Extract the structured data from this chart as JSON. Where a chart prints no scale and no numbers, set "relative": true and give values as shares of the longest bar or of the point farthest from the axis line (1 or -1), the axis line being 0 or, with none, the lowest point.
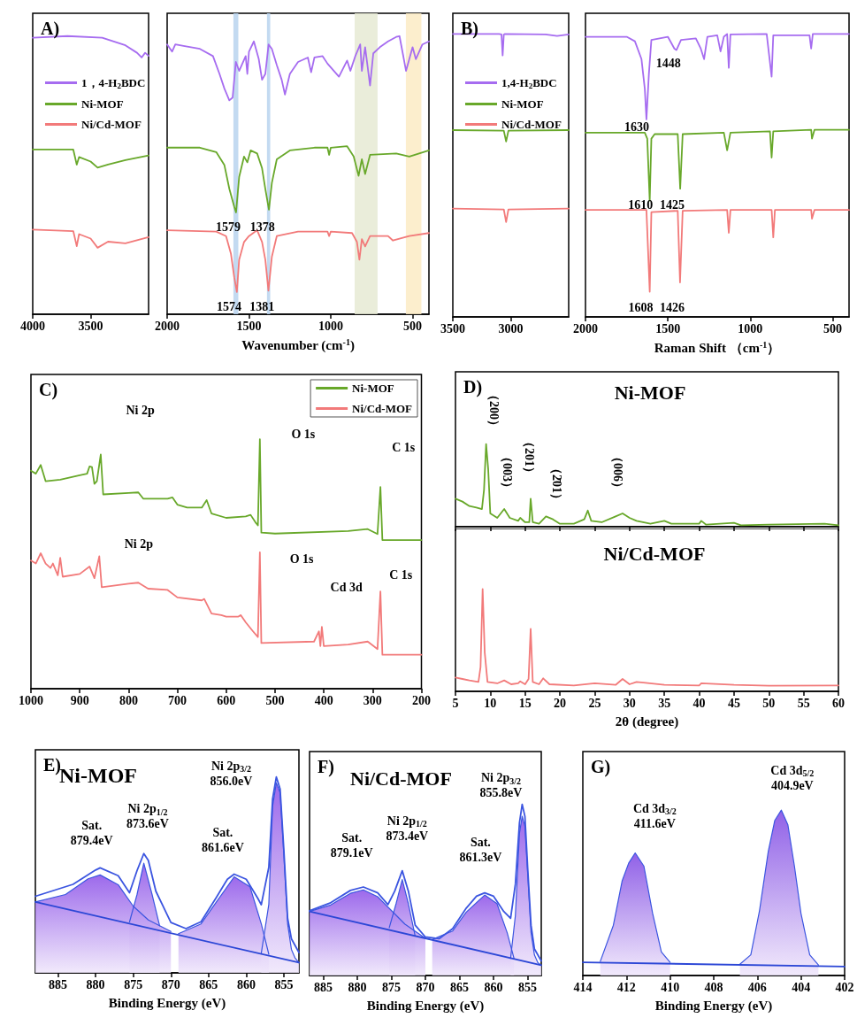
{
  "chart_data": [
    {
      "type": "line",
      "title": "A)",
      "relative": true,
      "xlim": [
        4000,
        3000
      ],
      "xticks": [
        4000,
        3500
      ],
      "legend": "left",
      "series": [
        {
          "name": "1，4-H$_{2}$BDC",
          "color": "#a66cf0",
          "x": [
            4000,
            3700,
            3400,
            3200,
            3100,
            3060,
            3030,
            3000
          ],
          "values": [
            0.994,
            1,
            0.994,
            0.967,
            0.94,
            0.923,
            0.94,
            0.929
          ]
        },
        {
          "name": "Ni-MOF",
          "color": "#68a82a",
          "x": [
            4000,
            3650,
            3620,
            3600,
            3500,
            3440,
            3350,
            3200,
            3000
          ],
          "values": [
            0.592,
            0.592,
            0.538,
            0.565,
            0.549,
            0.527,
            0.538,
            0.554,
            0.571
          ]
        },
        {
          "name": "Ni/Cd-MOF",
          "color": "#f27a7a",
          "x": [
            4000,
            3650,
            3620,
            3600,
            3500,
            3440,
            3350,
            3200,
            3050,
            3000
          ],
          "values": [
            0.304,
            0.299,
            0.245,
            0.288,
            0.272,
            0.239,
            0.261,
            0.255,
            0.272,
            0.277
          ]
        }
      ]
    },
    {
      "type": "line",
      "xlabel": "Wavenumber (cm$^{-1}$)",
      "relative": true,
      "xlim": [
        2000,
        400
      ],
      "xticks": [
        2000,
        1500,
        1000,
        500
      ],
      "bands": [
        {
          "axis": "x",
          "from": 1595,
          "to": 1565,
          "color": "#b9d4ee"
        },
        {
          "axis": "x",
          "from": 1390,
          "to": 1370,
          "color": "#b9d4ee"
        },
        {
          "axis": "x",
          "from": 854,
          "to": 714,
          "color": "#e6ead4"
        },
        {
          "axis": "x",
          "from": 541,
          "to": 446,
          "color": "#fbebc4"
        }
      ],
      "annotations": [
        "1579",
        "1378",
        "1574",
        "1381"
      ],
      "series": [
        {
          "color": "#a66cf0",
          "x": [
            2000,
            1970,
            1950,
            1900,
            1800,
            1720,
            1680,
            1650,
            1620,
            1600,
            1580,
            1560,
            1520,
            1510,
            1500,
            1470,
            1440,
            1420,
            1400,
            1380,
            1360,
            1330,
            1300,
            1280,
            1250,
            1200,
            1140,
            1120,
            1100,
            1050,
            1020,
            950,
            900,
            880,
            850,
            820,
            810,
            790,
            760,
            740,
            700,
            650,
            600,
            580,
            560,
            540,
            520,
            500,
            480,
            440,
            400
          ],
          "values": [
            0.97,
            0.944,
            0.97,
            0.965,
            0.954,
            0.928,
            0.864,
            0.811,
            0.769,
            0.779,
            0.907,
            0.875,
            0.928,
            0.864,
            0.944,
            0.981,
            0.917,
            0.843,
            0.864,
            0.97,
            0.954,
            0.896,
            0.843,
            0.79,
            0.864,
            0.907,
            0.923,
            0.87,
            0.923,
            0.928,
            0.901,
            0.854,
            0.912,
            0.875,
            0.928,
            0.97,
            0.875,
            0.96,
            0.822,
            0.938,
            0.96,
            0.981,
            0.997,
            1,
            0.938,
            0.875,
            0.917,
            0.96,
            0.917,
            0.97,
            0.981
          ]
        },
        {
          "color": "#68a82a",
          "x": [
            2000,
            1800,
            1700,
            1650,
            1620,
            1590,
            1579,
            1560,
            1530,
            1510,
            1490,
            1450,
            1420,
            1400,
            1378,
            1360,
            1330,
            1250,
            1100,
            1020,
            1010,
            1000,
            900,
            860,
            830,
            810,
            790,
            760,
            600,
            520,
            400
          ],
          "values": [
            0.599,
            0.599,
            0.583,
            0.536,
            0.451,
            0.387,
            0.366,
            0.493,
            0.567,
            0.546,
            0.589,
            0.578,
            0.525,
            0.451,
            0.376,
            0.472,
            0.557,
            0.589,
            0.599,
            0.599,
            0.573,
            0.599,
            0.604,
            0.567,
            0.498,
            0.557,
            0.504,
            0.573,
            0.578,
            0.567,
            0.589
          ]
        },
        {
          "color": "#f27a7a",
          "x": [
            2000,
            1700,
            1640,
            1610,
            1590,
            1574,
            1560,
            1530,
            1500,
            1450,
            1420,
            1400,
            1381,
            1360,
            1330,
            1200,
            1020,
            1010,
            1000,
            870,
            840,
            825,
            810,
            790,
            760,
            650,
            620,
            520,
            400
          ],
          "values": [
            0.302,
            0.297,
            0.281,
            0.217,
            0.133,
            0.08,
            0.196,
            0.26,
            0.281,
            0.302,
            0.26,
            0.196,
            0.085,
            0.207,
            0.281,
            0.297,
            0.297,
            0.281,
            0.297,
            0.292,
            0.26,
            0.196,
            0.27,
            0.244,
            0.281,
            0.281,
            0.265,
            0.281,
            0.292
          ]
        }
      ]
    },
    {
      "type": "line",
      "title": "B)",
      "relative": true,
      "xlim": [
        3500,
        2500
      ],
      "xticks": [
        3500,
        3000
      ],
      "legend": "left",
      "series": [
        {
          "name": "1,4-H$_{2}$BDC",
          "color": "#a66cf0",
          "x": [
            3500,
            3100,
            3080,
            3070,
            3060,
            3050,
            2700,
            2600,
            2500
          ],
          "values": [
            1,
            1,
            0.998,
            0.924,
            0.998,
            1,
            0.998,
            0.993,
            0.998
          ]
        },
        {
          "name": "Ni-MOF",
          "color": "#68a82a",
          "x": [
            3500,
            3060,
            3040,
            3020,
            2500
          ],
          "values": [
            0.66,
            0.658,
            0.62,
            0.658,
            0.66
          ]
        },
        {
          "name": "Ni/Cd-MOF",
          "color": "#f27a7a",
          "x": [
            3500,
            3060,
            3040,
            3020,
            2500
          ],
          "values": [
            0.383,
            0.38,
            0.335,
            0.38,
            0.383
          ]
        }
      ]
    },
    {
      "type": "line",
      "xlabel": "Raman Shift （cm$^{-1}$）",
      "relative": true,
      "xlim": [
        2000,
        400
      ],
      "xticks": [
        2000,
        1500,
        1000,
        500
      ],
      "annotations": [
        "1448",
        "1630",
        "1610",
        "1425",
        "1608",
        "1426"
      ],
      "series": [
        {
          "color": "#a66cf0",
          "x": [
            2000,
            1750,
            1700,
            1660,
            1640,
            1630,
            1615,
            1600,
            1500,
            1460,
            1448,
            1420,
            1330,
            1300,
            1280,
            1260,
            1200,
            1180,
            1160,
            1140,
            1130,
            1120,
            900,
            870,
            860,
            700,
            640,
            630,
            620,
            400
          ],
          "values": [
            0.99,
            0.99,
            0.974,
            0.911,
            0.807,
            0.698,
            0.859,
            0.979,
            0.99,
            0.948,
            0.943,
            0.979,
            0.984,
            0.948,
            0.911,
            0.99,
            0.995,
            0.938,
            0.99,
            1,
            0.88,
            0.998,
            1,
            0.849,
            0.995,
            0.995,
            0.995,
            0.948,
            1,
            1
          ]
        },
        {
          "color": "#68a82a",
          "x": [
            2000,
            1640,
            1625,
            1610,
            1600,
            1580,
            1550,
            1440,
            1425,
            1410,
            1160,
            1140,
            1120,
            880,
            870,
            860,
            630,
            625,
            610,
            400
          ],
          "values": [
            0.651,
            0.651,
            0.63,
            0.411,
            0.63,
            0.646,
            0.646,
            0.646,
            0.453,
            0.646,
            0.651,
            0.589,
            0.651,
            0.656,
            0.563,
            0.656,
            0.661,
            0.63,
            0.661,
            0.661
          ]
        },
        {
          "color": "#f27a7a",
          "x": [
            2000,
            1630,
            1610,
            1600,
            1440,
            1426,
            1410,
            1140,
            1130,
            1120,
            870,
            860,
            850,
            630,
            625,
            610,
            400
          ],
          "values": [
            0.378,
            0.378,
            0.089,
            0.37,
            0.375,
            0.122,
            0.375,
            0.378,
            0.297,
            0.378,
            0.378,
            0.281,
            0.378,
            0.378,
            0.347,
            0.378,
            0.378
          ]
        }
      ]
    },
    {
      "type": "line",
      "title": "C)",
      "relative": true,
      "xlim": [
        1000,
        200
      ],
      "xticks": [
        1000,
        900,
        800,
        700,
        600,
        500,
        400,
        300,
        200
      ],
      "legend": "top right",
      "annotations": [
        "Ni 2p",
        "O 1s",
        "C 1s",
        "Ni 2p",
        "O 1s",
        "Cd 3d",
        "C 1s"
      ],
      "series": [
        {
          "name": "Ni-MOF",
          "color": "#68a82a",
          "x": [
            1000,
            990,
            980,
            970,
            940,
            900,
            885,
            880,
            875,
            870,
            865,
            857,
            852,
            800,
            780,
            770,
            720,
            710,
            700,
            680,
            650,
            640,
            630,
            600,
            560,
            550,
            540,
            535,
            531,
            528,
            500,
            350,
            310,
            290,
            284,
            280,
            250,
            200
          ],
          "values": [
            0.874,
            0.862,
            0.897,
            0.832,
            0.838,
            0.856,
            0.862,
            0.891,
            0.889,
            0.821,
            0.832,
            0.939,
            0.779,
            0.785,
            0.787,
            0.762,
            0.762,
            0.767,
            0.738,
            0.726,
            0.726,
            0.756,
            0.702,
            0.685,
            0.691,
            0.697,
            0.667,
            0.655,
            1,
            0.626,
            0.622,
            0.632,
            0.64,
            0.62,
            0.809,
            0.596,
            0.596,
            0.596
          ]
        },
        {
          "name": "Ni/Cd-MOF",
          "color": "#f27a7a",
          "x": [
            1000,
            990,
            980,
            970,
            960,
            955,
            945,
            940,
            935,
            900,
            880,
            870,
            860,
            855,
            800,
            780,
            760,
            720,
            700,
            650,
            645,
            630,
            610,
            600,
            575,
            570,
            560,
            545,
            535,
            531,
            528,
            420,
            410,
            407,
            404,
            400,
            350,
            310,
            290,
            284,
            280,
            200
          ],
          "values": [
            0.514,
            0.502,
            0.543,
            0.502,
            0.484,
            0.502,
            0.455,
            0.525,
            0.449,
            0.46,
            0.49,
            0.443,
            0.531,
            0.407,
            0.421,
            0.425,
            0.401,
            0.396,
            0.366,
            0.354,
            0.36,
            0.301,
            0.295,
            0.289,
            0.289,
            0.295,
            0.266,
            0.23,
            0.207,
            0.547,
            0.183,
            0.189,
            0.23,
            0.171,
            0.248,
            0.171,
            0.177,
            0.189,
            0.159,
            0.39,
            0.136,
            0.136
          ]
        }
      ]
    },
    {
      "type": "line",
      "title": "D)",
      "subtitle": "Ni-MOF",
      "relative": true,
      "xlim": [
        5,
        60
      ],
      "xticks": [
        5,
        10,
        15,
        20,
        25,
        30,
        35,
        40,
        45,
        50,
        55,
        60
      ],
      "tick_labels": false,
      "annotations": [
        "（200）",
        "（003）",
        "（201）",
        "（2̄01）",
        "（006）"
      ],
      "series": [
        {
          "color": "#68a82a",
          "x": [
            5,
            6,
            7,
            8,
            8.8,
            9.1,
            9.4,
            9.7,
            10,
            11,
            12,
            12.8,
            14,
            14.3,
            15,
            15.6,
            15.8,
            16.1,
            17,
            18,
            19,
            20,
            22,
            23.5,
            24,
            24.5,
            26,
            28,
            29,
            30,
            31,
            33,
            35,
            36,
            40,
            40.3,
            41,
            45,
            46,
            50,
            58,
            60
          ],
          "values": [
            0.339,
            0.304,
            0.25,
            0.232,
            0.214,
            0.446,
            1,
            0.696,
            0.161,
            0.107,
            0.214,
            0.107,
            0.071,
            0.107,
            0.054,
            0.054,
            0.339,
            0.054,
            0.036,
            0.125,
            0.089,
            0.036,
            0.036,
            0.089,
            0.196,
            0.071,
            0.054,
            0.125,
            0.161,
            0.107,
            0.071,
            0.036,
            0.071,
            0.036,
            0.036,
            0.071,
            0.025,
            0.046,
            0.018,
            0.025,
            0.036,
            0.018
          ]
        }
      ]
    },
    {
      "type": "line",
      "subtitle": "Ni/Cd-MOF",
      "xlabel": "2θ (degree)",
      "relative": true,
      "xlim": [
        5,
        60
      ],
      "xticks": [
        5,
        10,
        15,
        20,
        25,
        30,
        35,
        40,
        45,
        50,
        55,
        60
      ],
      "series": [
        {
          "color": "#f27a7a",
          "x": [
            5,
            6,
            7,
            8.3,
            8.6,
            8.9,
            9.2,
            9.6,
            11,
            12,
            13,
            14,
            14.3,
            15,
            15.5,
            15.8,
            16.1,
            17,
            17.6,
            18.5,
            22,
            25,
            28,
            29,
            30,
            31,
            32,
            35,
            40,
            40.3,
            45,
            50,
            60
          ],
          "values": [
            0.135,
            0.121,
            0.107,
            0.092,
            0.236,
            1,
            0.38,
            0.092,
            0.078,
            0.107,
            0.069,
            0.078,
            0.098,
            0.069,
            0.121,
            0.611,
            0.092,
            0.069,
            0.127,
            0.069,
            0.058,
            0.078,
            0.063,
            0.121,
            0.069,
            0.092,
            0.086,
            0.063,
            0.058,
            0.078,
            0.063,
            0.055,
            0.058
          ]
        }
      ]
    },
    {
      "type": "line",
      "title": "E)",
      "subtitle": "Ni-MOF",
      "xlabel": "Binding Energy (eV)",
      "relative": true,
      "xlim": [
        888,
        853
      ],
      "xticks": [
        885,
        880,
        875,
        870,
        865,
        860,
        855
      ],
      "annotations": [
        "Sat.\n879.4eV",
        "Ni 2p$_{1/2}$\n873.6eV",
        "Sat.\n861.6eV",
        "Ni 2p$_{3/2}$\n856.0eV"
      ],
      "series": [
        {
          "type": "area",
          "color": "#8b4fe8",
          "x": [
            888,
            884,
            881,
            879.4,
            877,
            875,
            873,
            870
          ],
          "values": [
            0.362,
            0.4,
            0.48,
            0.5,
            0.45,
            0.34,
            0.27,
            0.211
          ]
        },
        {
          "type": "area",
          "color": "#8b4fe8",
          "x": [
            875.5,
            874.5,
            873.6,
            872.5,
            871.5
          ],
          "values": [
            0.26,
            0.4,
            0.56,
            0.4,
            0.24
          ]
        },
        {
          "type": "area",
          "color": "#8b4fe8",
          "x": [
            869,
            866,
            864,
            861.6,
            859.5,
            858,
            857
          ],
          "values": [
            0.2,
            0.25,
            0.36,
            0.49,
            0.44,
            0.25,
            0.095
          ]
        },
        {
          "type": "area",
          "color": "#8b4fe8",
          "x": [
            858,
            857,
            856.5,
            856,
            855.5,
            855,
            854.5,
            854,
            853.5,
            853
          ],
          "values": [
            0.1,
            0.35,
            0.85,
            0.97,
            0.92,
            0.6,
            0.25,
            0.12,
            0.075,
            0.052
          ]
        },
        {
          "type": "line",
          "color": "#2c47d6",
          "x": [
            888,
            853
          ],
          "values": [
            0.362,
            0.052
          ]
        },
        {
          "type": "line",
          "color": "#3b55e0",
          "x": [
            888,
            883,
            880,
            879.4,
            877,
            875.5,
            874.5,
            873.6,
            873,
            872,
            870,
            868,
            866,
            864,
            862.5,
            861.6,
            860,
            858.5,
            858,
            857,
            856.5,
            856,
            855.5,
            855,
            854.5,
            854,
            853
          ],
          "values": [
            0.391,
            0.452,
            0.525,
            0.536,
            0.496,
            0.409,
            0.522,
            0.609,
            0.574,
            0.417,
            0.257,
            0.226,
            0.261,
            0.383,
            0.478,
            0.504,
            0.478,
            0.383,
            0.348,
            0.539,
            0.887,
            1,
            0.939,
            0.626,
            0.278,
            0.174,
            0.104
          ]
        }
      ]
    },
    {
      "type": "line",
      "title": "F)",
      "subtitle": "Ni/Cd-MOF",
      "xlabel": "Binding Energy (eV)",
      "relative": true,
      "xlim": [
        887,
        853
      ],
      "xticks": [
        885,
        880,
        875,
        870,
        865,
        860,
        855
      ],
      "annotations": [
        "Sat.\n879.1eV",
        "Ni 2p$_{1/2}$\n873.4eV",
        "Sat.\n861.3eV",
        "Ni 2p$_{3/2}$\n855.8eV"
      ],
      "series": [
        {
          "type": "area",
          "color": "#8b4fe8",
          "x": [
            887,
            884,
            881,
            879.1,
            877,
            875,
            873,
            870
          ],
          "values": [
            0.374,
            0.41,
            0.48,
            0.5,
            0.46,
            0.38,
            0.3,
            0.217
          ]
        },
        {
          "type": "area",
          "color": "#8b4fe8",
          "x": [
            875.3,
            874.3,
            873.4,
            872.5,
            871.5
          ],
          "values": [
            0.28,
            0.42,
            0.56,
            0.42,
            0.23
          ]
        },
        {
          "type": "area",
          "color": "#8b4fe8",
          "x": [
            869,
            866,
            864,
            861.3,
            859.5,
            858,
            857
          ],
          "values": [
            0.21,
            0.26,
            0.37,
            0.47,
            0.42,
            0.25,
            0.1
          ]
        },
        {
          "type": "area",
          "color": "#8b4fe8",
          "x": [
            857.5,
            856.8,
            856.2,
            855.8,
            855.4,
            855,
            854.5,
            854,
            853.5,
            853
          ],
          "values": [
            0.1,
            0.35,
            0.83,
            0.93,
            0.87,
            0.6,
            0.25,
            0.12,
            0.075,
            0.06
          ]
        },
        {
          "type": "line",
          "color": "#2c47d6",
          "x": [
            887,
            853
          ],
          "values": [
            0.374,
            0.06
          ]
        },
        {
          "type": "line",
          "color": "#3b55e0",
          "x": [
            887,
            884,
            881,
            879.1,
            877,
            875.5,
            874.5,
            873.4,
            872.5,
            871.5,
            870,
            868,
            866,
            864,
            862.5,
            861.3,
            860,
            858.5,
            857.5,
            856.8,
            856.2,
            855.8,
            855.4,
            855,
            854.5,
            854,
            853
          ],
          "values": [
            0.378,
            0.423,
            0.497,
            0.517,
            0.483,
            0.414,
            0.493,
            0.612,
            0.493,
            0.294,
            0.225,
            0.215,
            0.274,
            0.394,
            0.463,
            0.483,
            0.463,
            0.374,
            0.334,
            0.533,
            0.891,
            1,
            0.93,
            0.632,
            0.294,
            0.155,
            0.085
          ]
        }
      ]
    },
    {
      "type": "line",
      "title": "G)",
      "xlabel": "Binding Energy (eV)",
      "relative": true,
      "xlim": [
        414,
        402
      ],
      "xticks": [
        414,
        412,
        410,
        408,
        406,
        404,
        402
      ],
      "annotations": [
        "Cd 3d$_{3/2}$\n411.6eV",
        "Cd 3d$_{5/2}$\n404.9eV"
      ],
      "series": [
        {
          "type": "area",
          "color": "#7d45e3",
          "x": [
            413.2,
            412.6,
            412.2,
            411.9,
            411.6,
            411.2,
            410.8,
            410.4,
            410
          ],
          "values": [
            0.085,
            0.304,
            0.571,
            0.679,
            0.741,
            0.661,
            0.375,
            0.143,
            0.08
          ]
        },
        {
          "type": "area",
          "color": "#7d45e3",
          "x": [
            406.8,
            406.3,
            405.9,
            405.5,
            405.2,
            404.9,
            404.6,
            404.3,
            404,
            403.6,
            403.2
          ],
          "values": [
            0.068,
            0.125,
            0.393,
            0.75,
            0.938,
            1,
            0.911,
            0.661,
            0.375,
            0.125,
            0.063
          ]
        },
        {
          "type": "line",
          "color": "#2c47d6",
          "x": [
            414,
            402
          ],
          "values": [
            0.08,
            0.054
          ]
        }
      ]
    }
  ]
}
